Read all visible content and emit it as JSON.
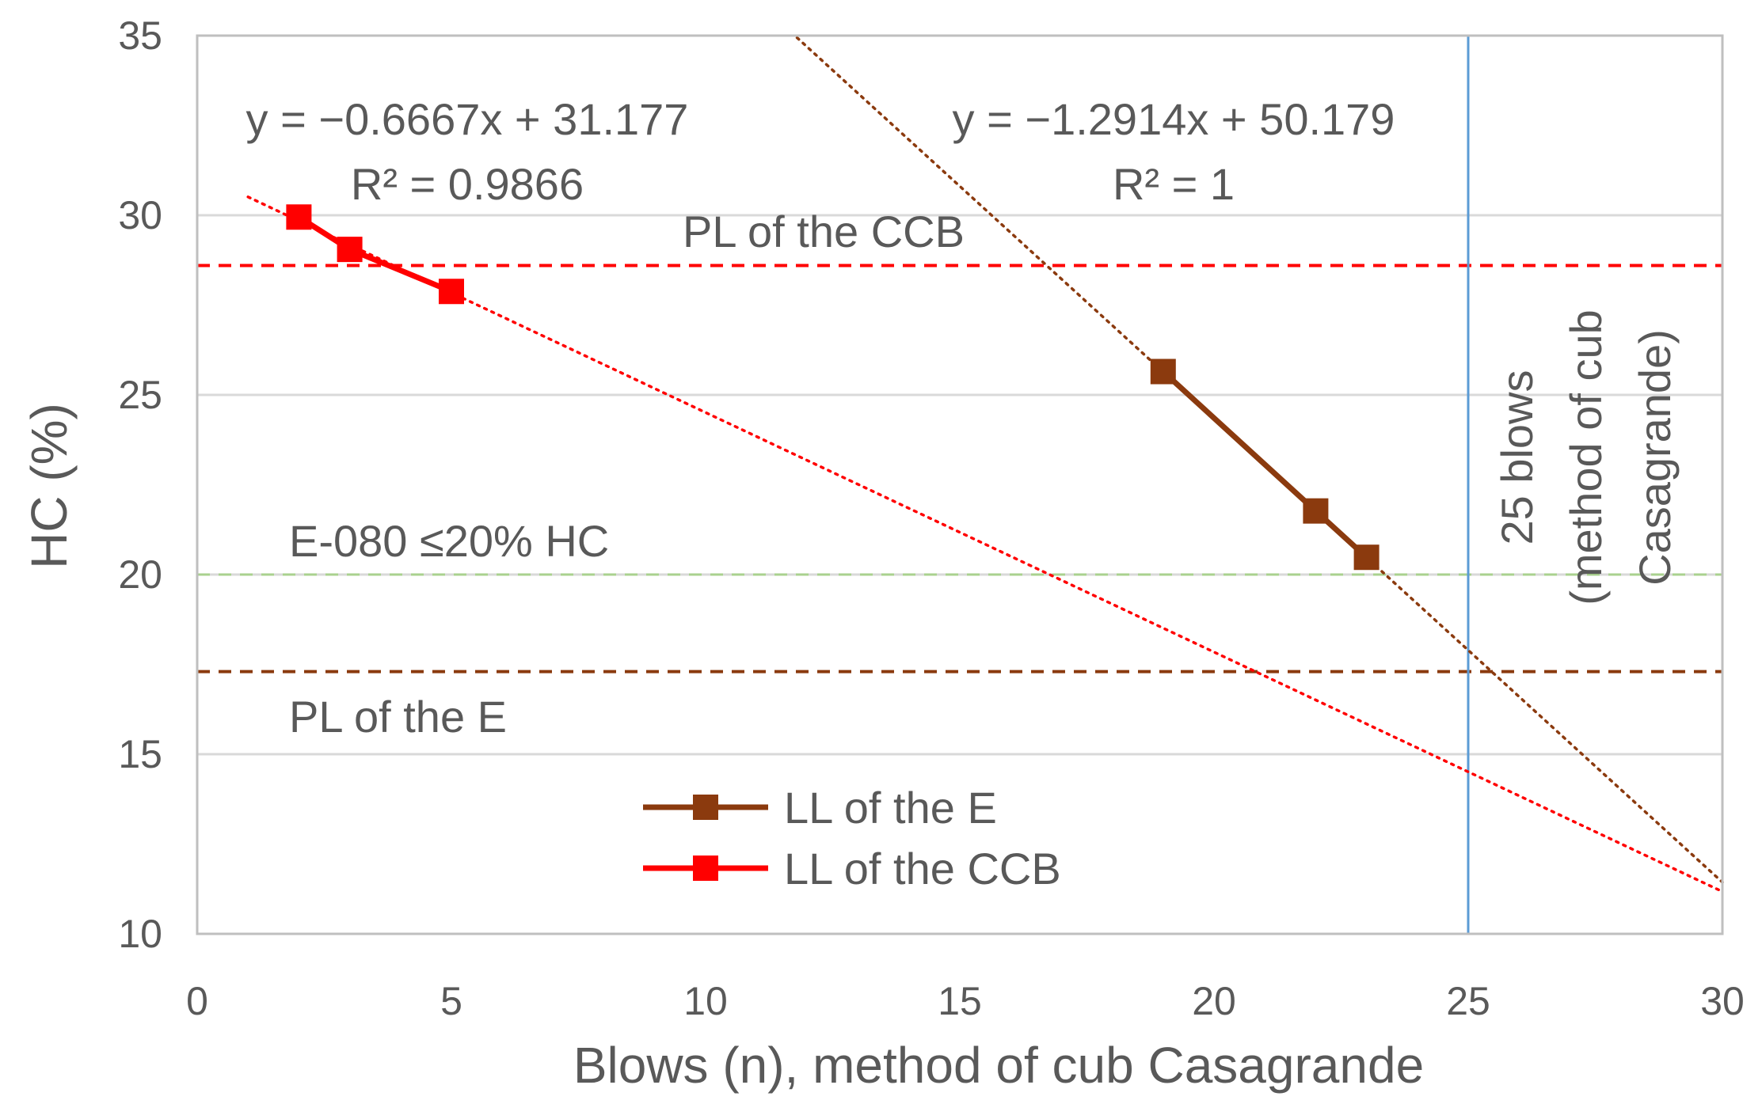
{
  "chart_data": {
    "type": "line",
    "xlabel": "Blows (n), method of cub Casagrande",
    "ylabel": "HC (%)",
    "xlim": [
      0,
      30
    ],
    "ylim": [
      10,
      35
    ],
    "x_ticks": [
      0,
      5,
      10,
      15,
      20,
      25,
      30
    ],
    "y_ticks": [
      10,
      15,
      20,
      25,
      30,
      35
    ],
    "grid": "horizontal",
    "legend_position": "bottom-center",
    "series": [
      {
        "name": "LL of the E",
        "color": "#8B3A0E",
        "marker": "square",
        "x": [
          19,
          22,
          23
        ],
        "y": [
          25.65,
          21.77,
          20.48
        ],
        "trendline": {
          "slope": -1.2914,
          "intercept": 50.179,
          "x_range": [
            11.8,
            30
          ],
          "style": "dotted",
          "equation": "y = −1.2914x + 50.179",
          "r2": "R² = 1"
        }
      },
      {
        "name": "LL of the CCB",
        "color": "#FF0000",
        "marker": "square",
        "x": [
          2,
          3,
          5
        ],
        "y": [
          29.95,
          29.05,
          27.88
        ],
        "trendline": {
          "slope": -0.6667,
          "intercept": 31.177,
          "x_range": [
            1,
            30
          ],
          "style": "dotted",
          "equation": "y = −0.6667x + 31.177",
          "r2": "R² = 0.9866"
        }
      }
    ],
    "reference_lines": [
      {
        "orientation": "horizontal",
        "value": 28.6,
        "color": "#FF0000",
        "style": "dashed",
        "label": "PL of the CCB"
      },
      {
        "orientation": "horizontal",
        "value": 20.0,
        "color": "#A9D18E",
        "style": "dashed",
        "label": "E-080 ≤20% HC"
      },
      {
        "orientation": "horizontal",
        "value": 17.3,
        "color": "#8B3A0E",
        "style": "dashed",
        "label": "PL of the E"
      },
      {
        "orientation": "vertical",
        "value": 25,
        "color": "#5B9BD5",
        "style": "solid",
        "label_lines": [
          "25 blows",
          "(method of cub",
          "Casagrande)"
        ]
      }
    ]
  }
}
